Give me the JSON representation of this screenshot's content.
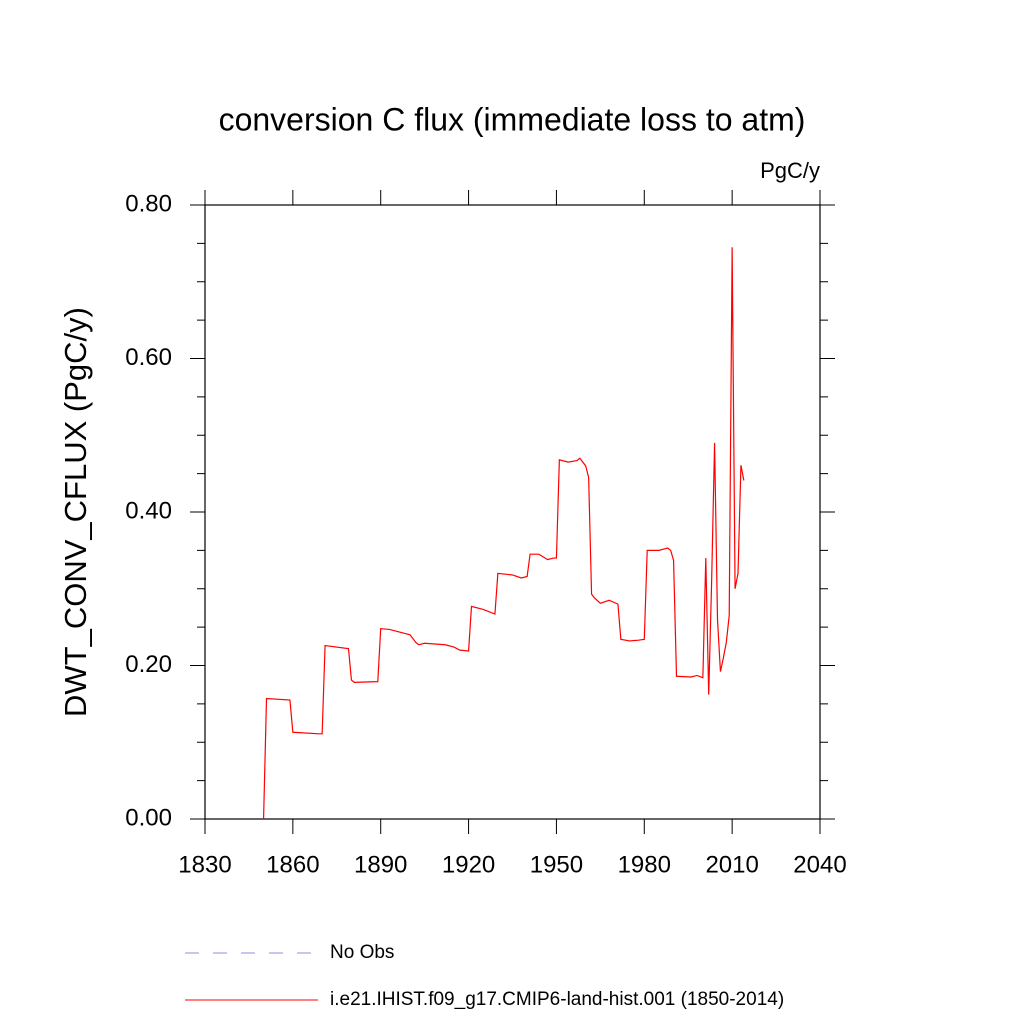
{
  "chart_data": {
    "type": "line",
    "title": "conversion C flux (immediate loss to atm)",
    "units": "PgC/y",
    "y_label": "DWT_CONV_CFLUX  (PgC/y)",
    "xlim": [
      1830,
      2040
    ],
    "xticks": [
      1830,
      1860,
      1890,
      1920,
      1950,
      1980,
      2010,
      2040
    ],
    "ylim": [
      0,
      0.8
    ],
    "yticks": [
      {
        "value": 0,
        "label": "0.00"
      },
      {
        "value": 0.2,
        "label": "0.20"
      },
      {
        "value": 0.4,
        "label": "0.40"
      },
      {
        "value": 0.6,
        "label": "0.60"
      },
      {
        "value": 0.8,
        "label": "0.80"
      }
    ],
    "yminor_step": 0.05,
    "reference": {
      "name": "No Obs",
      "color": "#8c8ce0",
      "dashed": true
    },
    "x": [
      1850,
      1851,
      1859,
      1860,
      1869,
      1870,
      1871,
      1879,
      1880,
      1881,
      1889,
      1890,
      1893,
      1900,
      1902,
      1903,
      1905,
      1912,
      1915,
      1917,
      1920,
      1921,
      1925,
      1929,
      1930,
      1935,
      1938,
      1940,
      1941,
      1944,
      1947,
      1949,
      1950,
      1951,
      1954,
      1957,
      1958,
      1960,
      1961,
      1962,
      1963,
      1965,
      1968,
      1971,
      1972,
      1975,
      1978,
      1980,
      1981,
      1985,
      1988,
      1989,
      1990,
      1991,
      1996,
      1998,
      2000,
      2001,
      2002,
      2003,
      2004,
      2005,
      2006,
      2007,
      2008,
      2009,
      2010,
      2011,
      2012,
      2013,
      2014
    ],
    "series": [
      {
        "name": "i.e21.IHIST.f09_g17.CMIP6-land-hist.001 (1850-2014)",
        "color": "#ff0000",
        "values": [
          0,
          0.157,
          0.155,
          0.113,
          0.111,
          0.111,
          0.226,
          0.222,
          0.181,
          0.178,
          0.179,
          0.248,
          0.247,
          0.24,
          0.23,
          0.227,
          0.229,
          0.227,
          0.224,
          0.22,
          0.219,
          0.277,
          0.273,
          0.267,
          0.32,
          0.318,
          0.314,
          0.316,
          0.345,
          0.345,
          0.338,
          0.34,
          0.34,
          0.468,
          0.465,
          0.467,
          0.47,
          0.46,
          0.445,
          0.293,
          0.288,
          0.281,
          0.285,
          0.28,
          0.234,
          0.232,
          0.233,
          0.234,
          0.35,
          0.35,
          0.353,
          0.35,
          0.337,
          0.186,
          0.185,
          0.187,
          0.184,
          0.34,
          0.162,
          0.31,
          0.49,
          0.26,
          0.192,
          0.21,
          0.23,
          0.265,
          0.745,
          0.3,
          0.32,
          0.461,
          0.441
        ]
      }
    ]
  }
}
